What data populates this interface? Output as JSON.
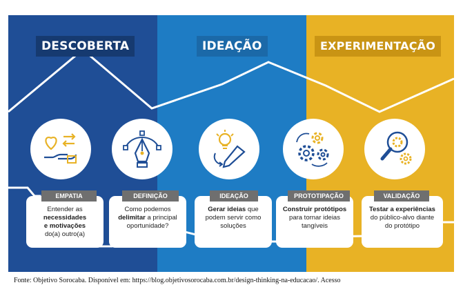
{
  "phases": [
    "DESCOBERTA",
    "IDEAÇÃO",
    "EXPERIMENTAÇÃO"
  ],
  "colors": {
    "descoberta": "#1f4e96",
    "ideacao": "#1e7cc4",
    "experimentacao": "#e8b225",
    "icon_accent": "#e8b225",
    "icon_primary": "#1f4e96",
    "tag": "#6f6f6f"
  },
  "steps": [
    {
      "tag": "EMPATIA",
      "icon": "heart-hand-arrows-icon",
      "text_1": "Entender as",
      "text_2": "necessidades",
      "text_3": "e motivações",
      "text_4": "do(a) outro(a)"
    },
    {
      "tag": "DEFINIÇÃO",
      "icon": "pen-tool-icon",
      "text_1": "Como podemos",
      "text_2": "delimitar",
      "text_3": "a principal",
      "text_4": "oportunidade?"
    },
    {
      "tag": "IDEAÇÃO",
      "icon": "lightbulb-pencil-icon",
      "text_1": "Gerar ideias",
      "text_2": "que",
      "text_3": "podem servir como",
      "text_4": "soluções"
    },
    {
      "tag": "PROTOTIPAÇÃO",
      "icon": "gears-icon",
      "text_1": "Construir protótipos",
      "text_2": "para tornar ideias",
      "text_3": "tangíveis"
    },
    {
      "tag": "VALIDAÇÃO",
      "icon": "magnifier-gear-icon",
      "text_1": "Testar a experiências",
      "text_2": "do público-alvo diante",
      "text_3": "do protótipo"
    }
  ],
  "caption": "Fonte: Objetivo Sorocaba. Disponível em: https://blog.objetivosorocaba.com.br/design-thinking-na-educacao/. Acesso"
}
